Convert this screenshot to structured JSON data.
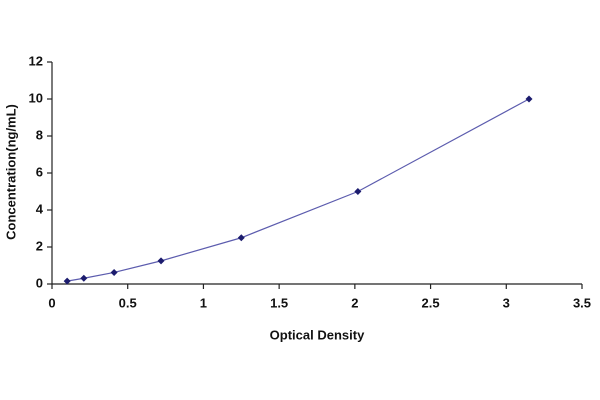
{
  "chart_data": {
    "type": "scatter",
    "x_label": "Optical Density",
    "y_label": "Concentration(ng/mL)",
    "series": [
      {
        "x": [
          0.1,
          0.21,
          0.41,
          0.72,
          1.25,
          2.02,
          3.15
        ],
        "values": [
          0.156,
          0.312,
          0.625,
          1.25,
          2.5,
          5,
          10
        ],
        "color": "#1c1c6e",
        "line_color": "#5c5cae",
        "line": true
      }
    ],
    "xlim": [
      0,
      3.5
    ],
    "xticks": [
      0,
      0.5,
      1,
      1.5,
      2,
      2.5,
      3,
      3.5
    ],
    "ylim": [
      0,
      12
    ],
    "yticks": [
      0,
      2,
      4,
      6,
      8,
      10,
      12
    ],
    "grid": false
  }
}
